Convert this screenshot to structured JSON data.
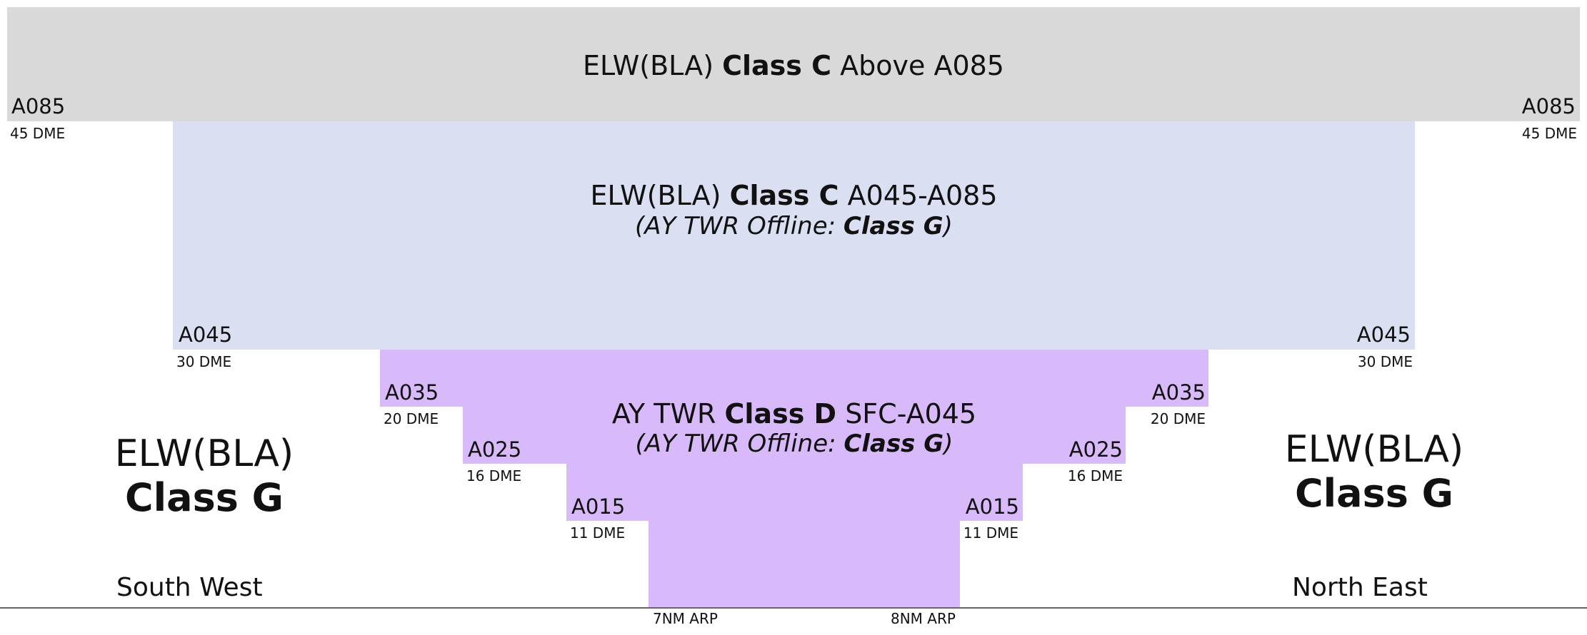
{
  "upper": {
    "title_prefix": "ELW(BLA)",
    "title_class": "Class C",
    "title_suffix": "Above A085",
    "alt_left": "A085",
    "dme_left": "45 DME",
    "alt_right": "A085",
    "dme_right": "45 DME"
  },
  "middle": {
    "title_prefix": "ELW(BLA)",
    "title_class": "Class C",
    "title_suffix": "A045-A085",
    "offline_prefix": "(AY TWR Offline:",
    "offline_class": "Class G",
    "offline_suffix": ")",
    "alt_left": "A045",
    "dme_left": "30 DME",
    "alt_right": "A045",
    "dme_right": "30 DME"
  },
  "tower": {
    "title_prefix": "AY TWR",
    "title_class": "Class D",
    "title_suffix": "SFC-A045",
    "offline_prefix": "(AY TWR Offline:",
    "offline_class": "Class G",
    "offline_suffix": ")",
    "steps_left": [
      {
        "alt": "A035",
        "dme": "20 DME"
      },
      {
        "alt": "A025",
        "dme": "16 DME"
      },
      {
        "alt": "A015",
        "dme": "11 DME"
      }
    ],
    "steps_right": [
      {
        "alt": "A035",
        "dme": "20 DME"
      },
      {
        "alt": "A025",
        "dme": "16 DME"
      },
      {
        "alt": "A015",
        "dme": "11 DME"
      }
    ]
  },
  "outside_left": {
    "line1": "ELW(BLA)",
    "line2": "Class G",
    "direction": "South West"
  },
  "outside_right": {
    "line1": "ELW(BLA)",
    "line2": "Class G",
    "direction": "North East"
  },
  "ground": {
    "arp_left": "7NM ARP",
    "arp_right": "8NM ARP"
  },
  "colors": {
    "class_c_upper": "#d9d9d9",
    "class_c_lower": "#dadff2",
    "class_d": "#d8b9f9"
  }
}
